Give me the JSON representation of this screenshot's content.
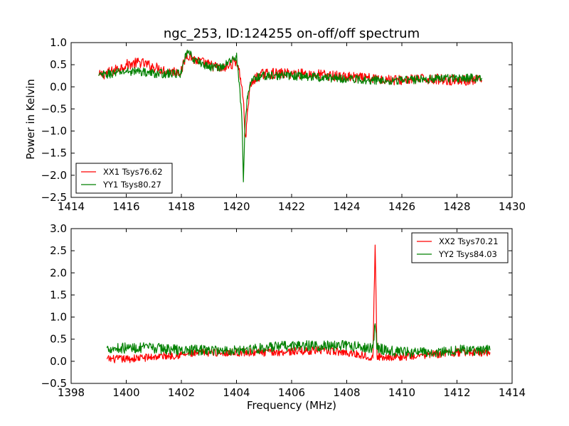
{
  "figure": {
    "title": "ngc_253, ID:124255 on-off/off spectrum",
    "ylabel": "Power in Kelvin",
    "xlabel": "Frequency (MHz)"
  },
  "chart_data": [
    {
      "type": "line",
      "title": "ngc_253, ID:124255 on-off/off spectrum",
      "xlabel": "",
      "ylabel": "Power in Kelvin",
      "xlim": [
        1414,
        1430
      ],
      "ylim": [
        -2.5,
        1.0
      ],
      "xticks": [
        "1414",
        "1416",
        "1418",
        "1420",
        "1422",
        "1424",
        "1426",
        "1428",
        "1430"
      ],
      "yticks": [
        "1.0",
        "0.5",
        "0.0",
        "−0.5",
        "−1.0",
        "−1.5",
        "−2.0",
        "−2.5"
      ],
      "grid": false,
      "legend_position": "lower-left",
      "series": [
        {
          "name": "XX1 Tsys76.62",
          "color": "#ff0000",
          "x": [
            1415.0,
            1415.5,
            1416.0,
            1416.5,
            1417.0,
            1417.5,
            1418.0,
            1418.2,
            1418.5,
            1419.0,
            1419.5,
            1419.8,
            1420.0,
            1420.15,
            1420.25,
            1420.3,
            1420.35,
            1420.4,
            1420.5,
            1420.7,
            1421.0,
            1421.5,
            1422.0,
            1423.0,
            1424.0,
            1425.0,
            1426.0,
            1427.0,
            1428.0,
            1428.9
          ],
          "y": [
            0.25,
            0.35,
            0.5,
            0.55,
            0.45,
            0.35,
            0.35,
            0.75,
            0.6,
            0.5,
            0.4,
            0.5,
            0.6,
            0.2,
            -0.3,
            -1.0,
            -1.1,
            -0.5,
            0.0,
            0.2,
            0.3,
            0.3,
            0.3,
            0.28,
            0.22,
            0.18,
            0.15,
            0.18,
            0.15,
            0.15
          ],
          "noise": 0.12
        },
        {
          "name": "YY1 Tsys80.27",
          "color": "#008000",
          "x": [
            1415.0,
            1415.5,
            1416.0,
            1416.5,
            1417.0,
            1417.5,
            1418.0,
            1418.2,
            1418.5,
            1419.0,
            1419.5,
            1419.8,
            1420.0,
            1420.1,
            1420.2,
            1420.25,
            1420.3,
            1420.4,
            1420.5,
            1420.7,
            1421.0,
            1421.5,
            1422.0,
            1423.0,
            1424.0,
            1425.0,
            1426.0,
            1427.0,
            1428.0,
            1428.9
          ],
          "y": [
            0.25,
            0.3,
            0.35,
            0.35,
            0.3,
            0.3,
            0.3,
            0.8,
            0.6,
            0.45,
            0.45,
            0.6,
            0.7,
            0.1,
            -0.8,
            -2.15,
            -1.0,
            -0.2,
            0.1,
            0.2,
            0.25,
            0.25,
            0.25,
            0.22,
            0.18,
            0.15,
            0.15,
            0.18,
            0.2,
            0.2
          ],
          "noise": 0.1
        }
      ]
    },
    {
      "type": "line",
      "title": "",
      "xlabel": "Frequency (MHz)",
      "ylabel": "",
      "xlim": [
        1398,
        1414
      ],
      "ylim": [
        -0.5,
        3.0
      ],
      "xticks": [
        "1398",
        "1400",
        "1402",
        "1404",
        "1406",
        "1408",
        "1410",
        "1412",
        "1414"
      ],
      "yticks": [
        "3.0",
        "2.5",
        "2.0",
        "1.5",
        "1.0",
        "0.5",
        "0.0",
        "−0.5"
      ],
      "grid": false,
      "legend_position": "top-right",
      "series": [
        {
          "name": "XX2 Tsys70.21",
          "color": "#ff0000",
          "x": [
            1399.3,
            1400.0,
            1401.0,
            1402.0,
            1403.0,
            1404.0,
            1405.0,
            1406.0,
            1407.0,
            1408.0,
            1408.95,
            1409.03,
            1409.1,
            1410.0,
            1411.0,
            1412.0,
            1413.2
          ],
          "y": [
            0.05,
            0.05,
            0.1,
            0.15,
            0.2,
            0.2,
            0.2,
            0.22,
            0.25,
            0.2,
            0.1,
            2.63,
            0.1,
            0.1,
            0.15,
            0.2,
            0.2
          ],
          "noise": 0.09
        },
        {
          "name": "YY2 Tsys84.03",
          "color": "#008000",
          "x": [
            1399.3,
            1400.0,
            1401.0,
            1402.0,
            1403.0,
            1404.0,
            1405.0,
            1406.0,
            1407.0,
            1408.0,
            1408.95,
            1409.03,
            1409.1,
            1410.0,
            1411.0,
            1412.0,
            1413.2
          ],
          "y": [
            0.3,
            0.3,
            0.3,
            0.25,
            0.25,
            0.25,
            0.3,
            0.35,
            0.35,
            0.35,
            0.3,
            0.85,
            0.3,
            0.2,
            0.2,
            0.25,
            0.25
          ],
          "noise": 0.12
        }
      ]
    }
  ]
}
